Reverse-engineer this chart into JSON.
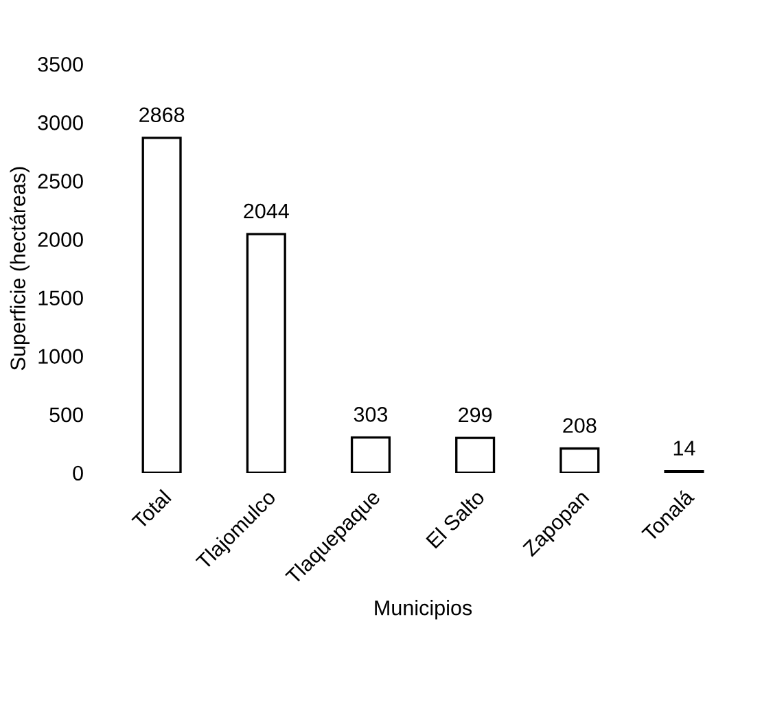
{
  "chart_data": {
    "type": "bar",
    "xlabel": "Municipios",
    "ylabel": "Superficie (hectáreas)",
    "categories": [
      "Total",
      "Tlajomulco",
      "Tlaquepaque",
      "El Salto",
      "Zapopan",
      "Tonalá"
    ],
    "values": [
      2868,
      2044,
      303,
      299,
      208,
      14
    ],
    "color": "#ffffff",
    "ylim": [
      0,
      3500
    ],
    "yticks": [
      0,
      500,
      1000,
      1500,
      2000,
      2500,
      3000,
      3500
    ],
    "grid": false,
    "data_labels": true
  }
}
